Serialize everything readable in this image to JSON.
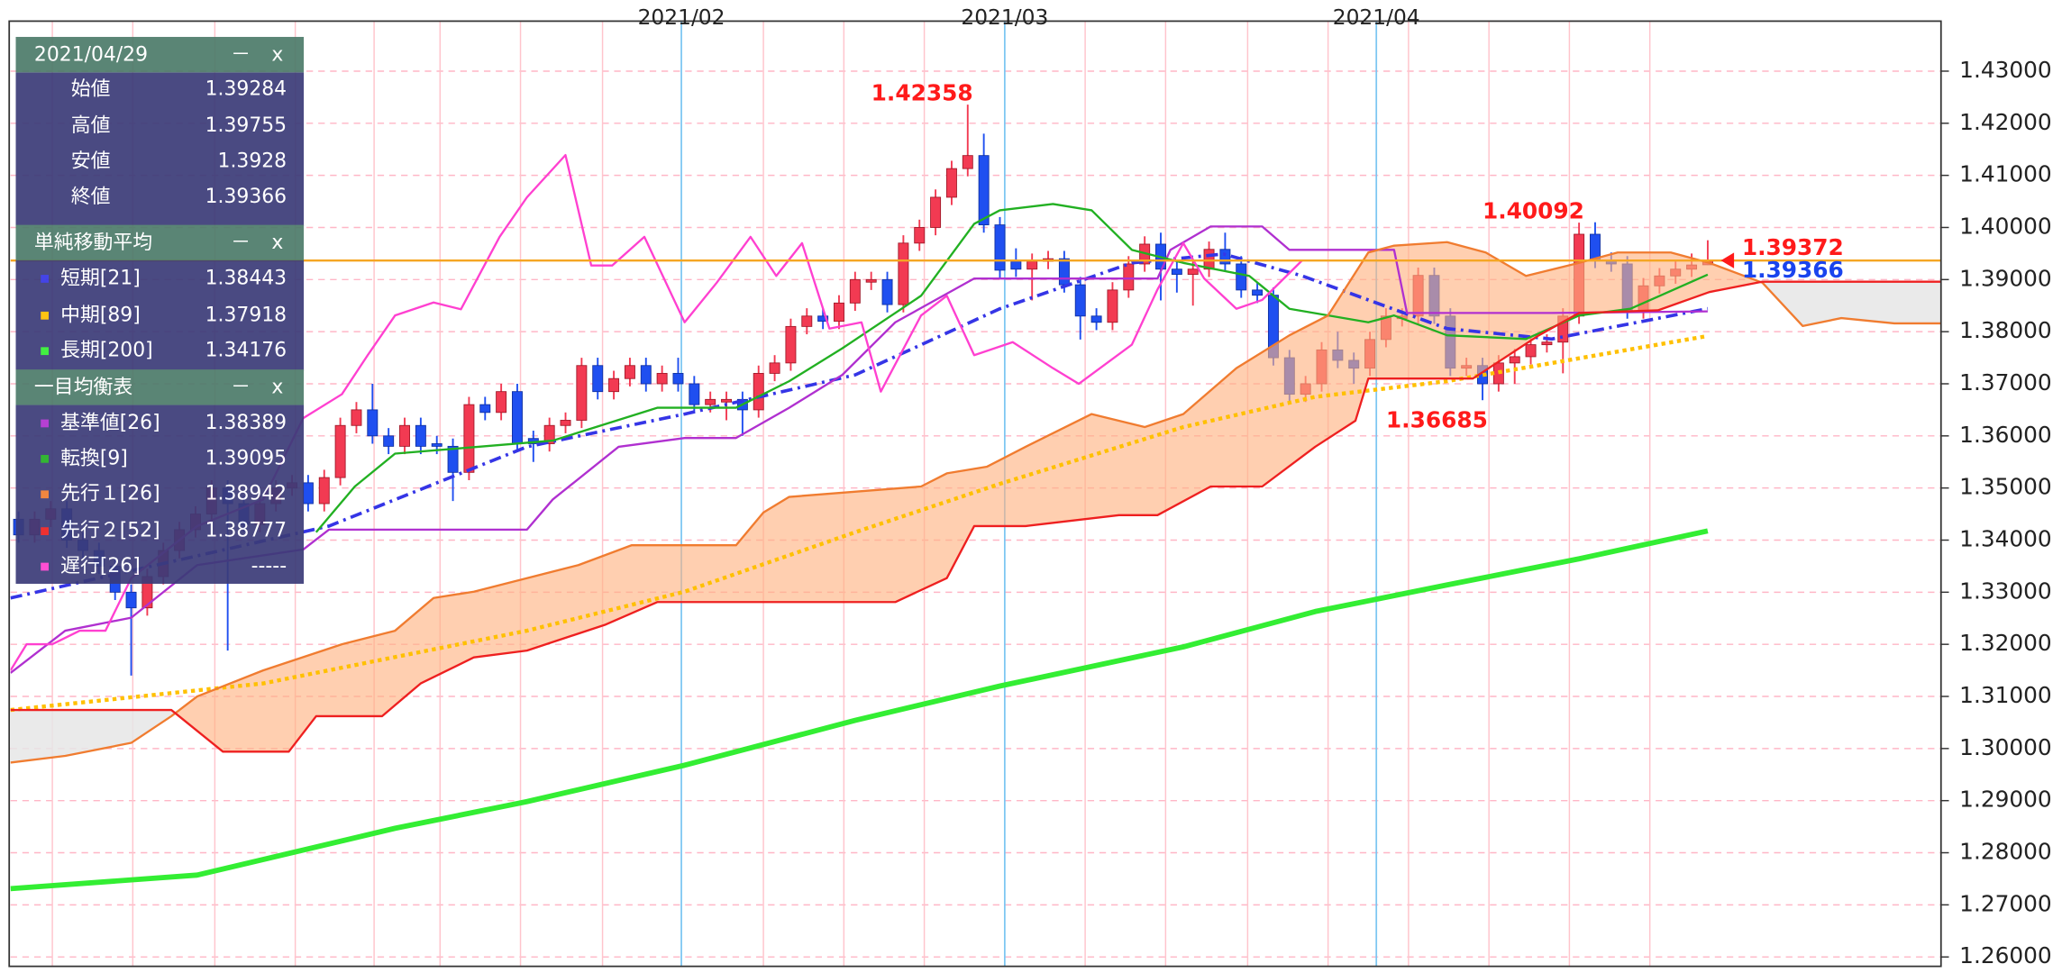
{
  "chart_data": {
    "type": "candlestick",
    "xlim": [
      0,
      120
    ],
    "ylim": [
      1.2582,
      1.4396
    ],
    "yticks": [
      {
        "value": 1.26,
        "label": "1.26000"
      },
      {
        "value": 1.27,
        "label": "1.27000"
      },
      {
        "value": 1.28,
        "label": "1.28000"
      },
      {
        "value": 1.29,
        "label": "1.29000"
      },
      {
        "value": 1.3,
        "label": "1.30000"
      },
      {
        "value": 1.31,
        "label": "1.31000"
      },
      {
        "value": 1.32,
        "label": "1.32000"
      },
      {
        "value": 1.33,
        "label": "1.33000"
      },
      {
        "value": 1.34,
        "label": "1.34000"
      },
      {
        "value": 1.35,
        "label": "1.35000"
      },
      {
        "value": 1.36,
        "label": "1.36000"
      },
      {
        "value": 1.37,
        "label": "1.37000"
      },
      {
        "value": 1.38,
        "label": "1.38000"
      },
      {
        "value": 1.39,
        "label": "1.39000"
      },
      {
        "value": 1.4,
        "label": "1.40000"
      },
      {
        "value": 1.41,
        "label": "1.41000"
      },
      {
        "value": 1.42,
        "label": "1.42000"
      },
      {
        "value": 1.43,
        "label": "1.43000"
      }
    ],
    "xticks": [
      {
        "value": 41.7,
        "label": "2021/02"
      },
      {
        "value": 61.8,
        "label": "2021/03"
      },
      {
        "value": 84.9,
        "label": "2021/04"
      }
    ],
    "vgrid": [
      2.6,
      7.6,
      12.7,
      17.7,
      22.6,
      26.7,
      31.7,
      36.8,
      46.8,
      51.8,
      56.8,
      66.8,
      71.8,
      76.9,
      81.9,
      86.9,
      91.9,
      96.9,
      101.9
    ],
    "grid": true,
    "up_color": "#f23a52",
    "down_color": "#1f4ff0",
    "candles": [
      [
        1.344,
        1.3455,
        1.3395,
        1.341
      ],
      [
        1.341,
        1.3455,
        1.3395,
        1.344
      ],
      [
        1.344,
        1.3475,
        1.3425,
        1.346
      ],
      [
        1.346,
        1.3475,
        1.3385,
        1.34
      ],
      [
        1.34,
        1.3415,
        1.3365,
        1.338
      ],
      [
        1.338,
        1.3395,
        1.3335,
        1.335
      ],
      [
        1.335,
        1.3365,
        1.3285,
        1.33
      ],
      [
        1.33,
        1.3315,
        1.314,
        1.327
      ],
      [
        1.327,
        1.3345,
        1.3255,
        1.333
      ],
      [
        1.333,
        1.3395,
        1.3315,
        1.338
      ],
      [
        1.338,
        1.3435,
        1.3365,
        1.342
      ],
      [
        1.342,
        1.3465,
        1.3405,
        1.345
      ],
      [
        1.345,
        1.3515,
        1.3435,
        1.35
      ],
      [
        1.35,
        1.3515,
        1.3188,
        1.347
      ],
      [
        1.347,
        1.3485,
        1.3415,
        1.343
      ],
      [
        1.343,
        1.3485,
        1.3415,
        1.347
      ],
      [
        1.347,
        1.3515,
        1.3455,
        1.35
      ],
      [
        1.35,
        1.3525,
        1.3485,
        1.351
      ],
      [
        1.351,
        1.3525,
        1.3455,
        1.347
      ],
      [
        1.347,
        1.3535,
        1.3455,
        1.352
      ],
      [
        1.352,
        1.3635,
        1.3505,
        1.362
      ],
      [
        1.362,
        1.3665,
        1.3605,
        1.365
      ],
      [
        1.365,
        1.37,
        1.3585,
        1.36
      ],
      [
        1.36,
        1.3615,
        1.3565,
        1.358
      ],
      [
        1.358,
        1.3635,
        1.3565,
        1.362
      ],
      [
        1.362,
        1.3635,
        1.3565,
        1.358
      ],
      [
        1.3585,
        1.36,
        1.3565,
        1.358
      ],
      [
        1.358,
        1.3595,
        1.3475,
        1.353
      ],
      [
        1.353,
        1.3675,
        1.3515,
        1.366
      ],
      [
        1.366,
        1.3675,
        1.363,
        1.3645
      ],
      [
        1.3645,
        1.37,
        1.363,
        1.3685
      ],
      [
        1.3685,
        1.37,
        1.357,
        1.3585
      ],
      [
        1.3595,
        1.361,
        1.355,
        1.3585
      ],
      [
        1.3585,
        1.3635,
        1.357,
        1.362
      ],
      [
        1.362,
        1.3645,
        1.3605,
        1.363
      ],
      [
        1.363,
        1.375,
        1.3615,
        1.3735
      ],
      [
        1.3735,
        1.375,
        1.367,
        1.3685
      ],
      [
        1.3685,
        1.3725,
        1.367,
        1.371
      ],
      [
        1.371,
        1.375,
        1.3695,
        1.3735
      ],
      [
        1.3735,
        1.375,
        1.3685,
        1.37
      ],
      [
        1.37,
        1.3735,
        1.3685,
        1.372
      ],
      [
        1.372,
        1.375,
        1.3685,
        1.37
      ],
      [
        1.37,
        1.3715,
        1.3645,
        1.366
      ],
      [
        1.366,
        1.3685,
        1.3645,
        1.367
      ],
      [
        1.3665,
        1.3685,
        1.363,
        1.367
      ],
      [
        1.367,
        1.3685,
        1.36,
        1.365
      ],
      [
        1.365,
        1.3735,
        1.3635,
        1.372
      ],
      [
        1.372,
        1.3755,
        1.3705,
        1.374
      ],
      [
        1.374,
        1.3825,
        1.3725,
        1.381
      ],
      [
        1.381,
        1.3845,
        1.3795,
        1.383
      ],
      [
        1.383,
        1.3845,
        1.3805,
        1.382
      ],
      [
        1.382,
        1.387,
        1.3805,
        1.3855
      ],
      [
        1.3855,
        1.3915,
        1.384,
        1.39
      ],
      [
        1.3895,
        1.3915,
        1.388,
        1.39
      ],
      [
        1.39,
        1.3915,
        1.3837,
        1.3852
      ],
      [
        1.3852,
        1.3985,
        1.3837,
        1.397
      ],
      [
        1.397,
        1.4015,
        1.3955,
        1.4
      ],
      [
        1.4,
        1.4073,
        1.3985,
        1.4058
      ],
      [
        1.4058,
        1.4128,
        1.4043,
        1.4113
      ],
      [
        1.4113,
        1.42358,
        1.4098,
        1.4138
      ],
      [
        1.4138,
        1.418,
        1.399,
        1.4005
      ],
      [
        1.4005,
        1.402,
        1.3903,
        1.3918
      ],
      [
        1.3935,
        1.396,
        1.3905,
        1.392
      ],
      [
        1.392,
        1.395,
        1.386,
        1.3935
      ],
      [
        1.3935,
        1.3955,
        1.392,
        1.394
      ],
      [
        1.394,
        1.3955,
        1.3875,
        1.389
      ],
      [
        1.389,
        1.3905,
        1.3785,
        1.383
      ],
      [
        1.383,
        1.3845,
        1.3803,
        1.3818
      ],
      [
        1.3818,
        1.3895,
        1.3803,
        1.388
      ],
      [
        1.388,
        1.3945,
        1.3865,
        1.393
      ],
      [
        1.393,
        1.3983,
        1.3915,
        1.3968
      ],
      [
        1.3968,
        1.399,
        1.386,
        1.392
      ],
      [
        1.392,
        1.3935,
        1.3875,
        1.391
      ],
      [
        1.391,
        1.3935,
        1.385,
        1.392
      ],
      [
        1.392,
        1.3973,
        1.3905,
        1.3958
      ],
      [
        1.3958,
        1.399,
        1.3915,
        1.393
      ],
      [
        1.393,
        1.3945,
        1.3865,
        1.388
      ],
      [
        1.388,
        1.3895,
        1.3855,
        1.387
      ],
      [
        1.387,
        1.3885,
        1.3735,
        1.375
      ],
      [
        1.375,
        1.3765,
        1.3665,
        1.368
      ],
      [
        1.368,
        1.3715,
        1.3665,
        1.37
      ],
      [
        1.37,
        1.378,
        1.3685,
        1.3765
      ],
      [
        1.3765,
        1.38,
        1.373,
        1.3745
      ],
      [
        1.3745,
        1.376,
        1.37,
        1.373
      ],
      [
        1.373,
        1.38,
        1.3715,
        1.3785
      ],
      [
        1.3785,
        1.3845,
        1.377,
        1.383
      ],
      [
        1.3825,
        1.3845,
        1.381,
        1.383
      ],
      [
        1.383,
        1.3923,
        1.3815,
        1.3908
      ],
      [
        1.3908,
        1.3923,
        1.3815,
        1.383
      ],
      [
        1.383,
        1.3845,
        1.3715,
        1.373
      ],
      [
        1.373,
        1.375,
        1.3715,
        1.3735
      ],
      [
        1.3735,
        1.375,
        1.36685,
        1.37
      ],
      [
        1.37,
        1.3755,
        1.3685,
        1.374
      ],
      [
        1.374,
        1.3767,
        1.37,
        1.3752
      ],
      [
        1.3752,
        1.379,
        1.3737,
        1.3775
      ],
      [
        1.3775,
        1.3795,
        1.376,
        1.378
      ],
      [
        1.378,
        1.3845,
        1.372,
        1.383
      ],
      [
        1.383,
        1.40092,
        1.3815,
        1.3987
      ],
      [
        1.3987,
        1.401,
        1.3922,
        1.3937
      ],
      [
        1.3937,
        1.3952,
        1.3915,
        1.393
      ],
      [
        1.393,
        1.3945,
        1.3825,
        1.384
      ],
      [
        1.384,
        1.3903,
        1.3825,
        1.3888
      ],
      [
        1.3888,
        1.3922,
        1.3873,
        1.3907
      ],
      [
        1.3907,
        1.3935,
        1.3892,
        1.392
      ],
      [
        1.392,
        1.395,
        1.3905,
        1.3928
      ],
      [
        1.39284,
        1.39755,
        1.3928,
        1.39366
      ]
    ],
    "series": [
      {
        "name": "短期[21]",
        "color": "#3535e6",
        "style": "dashdot",
        "width": 2.5,
        "x": [
          0,
          19.8,
          32.1,
          41.9,
          52.5,
          61.5,
          69.7,
          75.4,
          80.3,
          89.3,
          95.8,
          105.5
        ],
        "values": [
          1.3289,
          1.3427,
          1.3579,
          1.3642,
          1.3717,
          1.3844,
          1.3932,
          1.3949,
          1.3907,
          1.3806,
          1.3786,
          1.38443
        ]
      },
      {
        "name": "中期[89]",
        "color": "#ffc000",
        "style": "dotted",
        "width": 3,
        "x": [
          0,
          15.7,
          32.1,
          41.9,
          52.5,
          61.5,
          72.9,
          81.1,
          89.3,
          105.5
        ],
        "values": [
          1.3074,
          1.3125,
          1.3226,
          1.3301,
          1.3415,
          1.3508,
          1.3617,
          1.3675,
          1.3705,
          1.37918
        ]
      },
      {
        "name": "長期[200]",
        "color": "#33ee33",
        "style": "solid",
        "width": 4,
        "x": [
          0,
          11.6,
          23.9,
          32.1,
          41.9,
          52.5,
          61.5,
          72.9,
          81.1,
          89.3,
          97.5,
          105.5
        ],
        "values": [
          1.2731,
          1.2757,
          1.2847,
          1.2898,
          1.2968,
          1.3054,
          1.312,
          1.3195,
          1.3263,
          1.3314,
          1.3364,
          1.34176
        ]
      },
      {
        "name": "基準値[26]",
        "color": "#b030d0",
        "style": "solid",
        "width": 1.6,
        "x": [
          0,
          3.4,
          7.5,
          11.6,
          18.2,
          19.8,
          32.1,
          33.7,
          37.8,
          41.9,
          45.1,
          48.4,
          51.7,
          55.0,
          59.9,
          71.3,
          72.1,
          74.6,
          77.8,
          79.5,
          86.0,
          86.8,
          95.8,
          105.5
        ],
        "values": [
          1.3145,
          1.3226,
          1.3251,
          1.3352,
          1.3382,
          1.342,
          1.342,
          1.3478,
          1.3579,
          1.3596,
          1.3596,
          1.3654,
          1.3717,
          1.3818,
          1.3902,
          1.3902,
          1.3957,
          1.4002,
          1.4002,
          1.3957,
          1.3957,
          1.3836,
          1.3836,
          1.38389
        ]
      },
      {
        "name": "転換[9]",
        "color": "#22b022",
        "style": "solid",
        "width": 1.6,
        "x": [
          19.0,
          21.4,
          23.9,
          33.7,
          40.2,
          45.1,
          48.4,
          51.7,
          56.6,
          59.9,
          61.5,
          64.8,
          67.2,
          69.7,
          72.9,
          77.0,
          79.5,
          84.4,
          86.0,
          89.3,
          94.2,
          97.5,
          100.7,
          105.5
        ],
        "values": [
          1.3415,
          1.3503,
          1.3566,
          1.3591,
          1.3654,
          1.3654,
          1.3705,
          1.3768,
          1.3869,
          1.4007,
          1.4033,
          1.4045,
          1.4033,
          1.3957,
          1.3932,
          1.3907,
          1.3844,
          1.3818,
          1.3831,
          1.3793,
          1.3786,
          1.3831,
          1.3844,
          1.39095
        ]
      },
      {
        "name": "先行１[26]",
        "color": "#f07c30",
        "style": "solid",
        "width": 1.6,
        "x": [
          0,
          3.4,
          7.5,
          10.0,
          11.6,
          15.7,
          20.6,
          23.9,
          26.3,
          28.8,
          32.1,
          35.3,
          38.6,
          45.1,
          46.8,
          48.4,
          56.6,
          58.2,
          60.7,
          63.1,
          67.2,
          70.5,
          72.9,
          76.2,
          79.5,
          81.9,
          84.4,
          86.0,
          89.3,
          91.7,
          94.2,
          97.5,
          99.9,
          103.2,
          105.6,
          108.9,
          111.4,
          113.8,
          117.1,
          120
        ],
        "values": [
          1.2973,
          1.2986,
          1.3011,
          1.3062,
          1.31,
          1.315,
          1.32,
          1.3226,
          1.3289,
          1.3301,
          1.3327,
          1.3352,
          1.339,
          1.339,
          1.3453,
          1.3483,
          1.3503,
          1.3528,
          1.3541,
          1.3579,
          1.3642,
          1.3617,
          1.3642,
          1.373,
          1.3793,
          1.3831,
          1.3952,
          1.3965,
          1.3972,
          1.3952,
          1.3907,
          1.3932,
          1.3952,
          1.3952,
          1.3932,
          1.3894,
          1.3811,
          1.3826,
          1.3816,
          1.3816
        ]
      },
      {
        "name": "先行２[52]",
        "color": "#ee2020",
        "style": "solid",
        "width": 1.6,
        "x": [
          0,
          10.0,
          13.2,
          17.3,
          19.0,
          23.1,
          25.5,
          28.8,
          32.1,
          37.0,
          40.2,
          55.0,
          58.2,
          59.9,
          63.1,
          68.9,
          71.3,
          74.6,
          77.8,
          81.1,
          83.6,
          84.4,
          90.9,
          95.0,
          97.5,
          102.4,
          105.6,
          108.9,
          120
        ],
        "values": [
          1.3074,
          1.3074,
          1.2994,
          1.2994,
          1.3062,
          1.3062,
          1.3125,
          1.3175,
          1.3188,
          1.3238,
          1.3281,
          1.3281,
          1.3327,
          1.3427,
          1.3427,
          1.3448,
          1.3448,
          1.3503,
          1.3503,
          1.3579,
          1.3629,
          1.371,
          1.371,
          1.3793,
          1.3836,
          1.3841,
          1.3876,
          1.3896,
          1.3896
        ]
      },
      {
        "name": "遅行[26]",
        "color": "#ff40d0",
        "style": "solid",
        "width": 1.6,
        "x": [
          0,
          1.0,
          2.6,
          4.3,
          5.9,
          7.5,
          11.6,
          15.7,
          18.2,
          20.6,
          22.2,
          23.9,
          26.3,
          28.0,
          30.4,
          32.1,
          34.5,
          36.1,
          37.4,
          39.4,
          41.9,
          43.9,
          46.0,
          47.6,
          49.2,
          50.9,
          52.9,
          54.1,
          56.6,
          58.2,
          59.9,
          62.3,
          64.8,
          66.4,
          69.7,
          71.3,
          72.9,
          74.2,
          76.2,
          77.8,
          80.3
        ],
        "values": [
          1.315,
          1.32,
          1.32,
          1.3226,
          1.3226,
          1.3327,
          1.3427,
          1.3478,
          1.3634,
          1.368,
          1.3755,
          1.3831,
          1.3856,
          1.3843,
          1.3982,
          1.4058,
          1.4139,
          1.3927,
          1.3927,
          1.3982,
          1.3818,
          1.3894,
          1.3982,
          1.3907,
          1.397,
          1.3806,
          1.3818,
          1.3685,
          1.3831,
          1.3869,
          1.3755,
          1.378,
          1.373,
          1.37,
          1.3775,
          1.3881,
          1.397,
          1.3902,
          1.3844,
          1.3861,
          1.3937
        ]
      }
    ],
    "cloud": {
      "upper_color": "#ffb27f",
      "lower_color": "#e6e6e6"
    },
    "current_price": {
      "value": 1.39366,
      "color": "#f5a623"
    },
    "annotations": [
      {
        "x": 59,
        "value": 1.42358,
        "position": "above",
        "color": "#ff1a1a"
      },
      {
        "x": 97,
        "value": 1.40092,
        "position": "above",
        "color": "#ff1a1a"
      },
      {
        "x": 91,
        "value": 1.36685,
        "position": "below",
        "color": "#ff1a1a"
      }
    ],
    "price_labels": [
      {
        "value": 1.39372,
        "color": "#ff1a1a"
      },
      {
        "value": 1.39366,
        "color": "#1a44ee"
      }
    ]
  },
  "panel": {
    "date": "2021/04/29",
    "controls": [
      "－",
      "x"
    ],
    "prices": [
      {
        "label": "始値",
        "value": 1.39284
      },
      {
        "label": "高値",
        "value": 1.39755
      },
      {
        "label": "安値",
        "value": 1.3928
      },
      {
        "label": "終値",
        "value": 1.39366
      }
    ],
    "sma_title": "単純移動平均",
    "sma_values": [
      1.38443,
      1.37918,
      1.34176
    ],
    "ichimoku_title": "一目均衡表",
    "ichimoku_values": [
      1.38389,
      1.39095,
      1.38942,
      1.38777,
      "-----"
    ]
  }
}
